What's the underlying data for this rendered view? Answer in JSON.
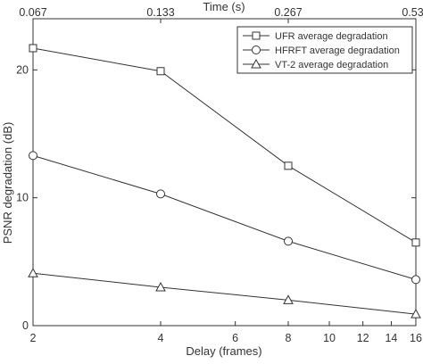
{
  "chart_data": {
    "type": "line",
    "title": "",
    "xlabel": "Delay (frames)",
    "ylabel": "PSNR degradation (dB)",
    "top_xlabel": "Time (s)",
    "x_scale": "log2",
    "xlim": [
      2,
      16
    ],
    "ylim": [
      0,
      24
    ],
    "x": [
      2,
      4,
      8,
      16
    ],
    "x_ticks": [
      {
        "value": 2,
        "label": "2"
      },
      {
        "value": 4,
        "label": "4"
      },
      {
        "value": 6,
        "label": "6"
      },
      {
        "value": 8,
        "label": "8"
      },
      {
        "value": 10,
        "label": "10"
      },
      {
        "value": 12,
        "label": "12"
      },
      {
        "value": 14,
        "label": "14"
      },
      {
        "value": 16,
        "label": "16"
      }
    ],
    "top_x_ticks": [
      {
        "value": 2,
        "label": "0.067"
      },
      {
        "value": 4,
        "label": "0.133"
      },
      {
        "value": 8,
        "label": "0.267"
      },
      {
        "value": 16,
        "label": "0.533"
      }
    ],
    "y_ticks": [
      {
        "value": 0,
        "label": "0"
      },
      {
        "value": 10,
        "label": "10"
      },
      {
        "value": 20,
        "label": "20"
      }
    ],
    "grid": false,
    "legend_position": "top-right",
    "series": [
      {
        "name": "UFR average degradation",
        "marker": "square",
        "values": [
          21.7,
          19.9,
          12.5,
          6.5
        ]
      },
      {
        "name": "HFRFT average degradation",
        "marker": "circle",
        "values": [
          13.3,
          10.3,
          6.6,
          3.6
        ]
      },
      {
        "name": "VT-2 average degradation",
        "marker": "triangle",
        "values": [
          4.1,
          3.0,
          2.0,
          0.9
        ]
      }
    ],
    "colors": {
      "line": "#333333",
      "marker_fill": "#ffffff",
      "axis": "#333333"
    }
  }
}
